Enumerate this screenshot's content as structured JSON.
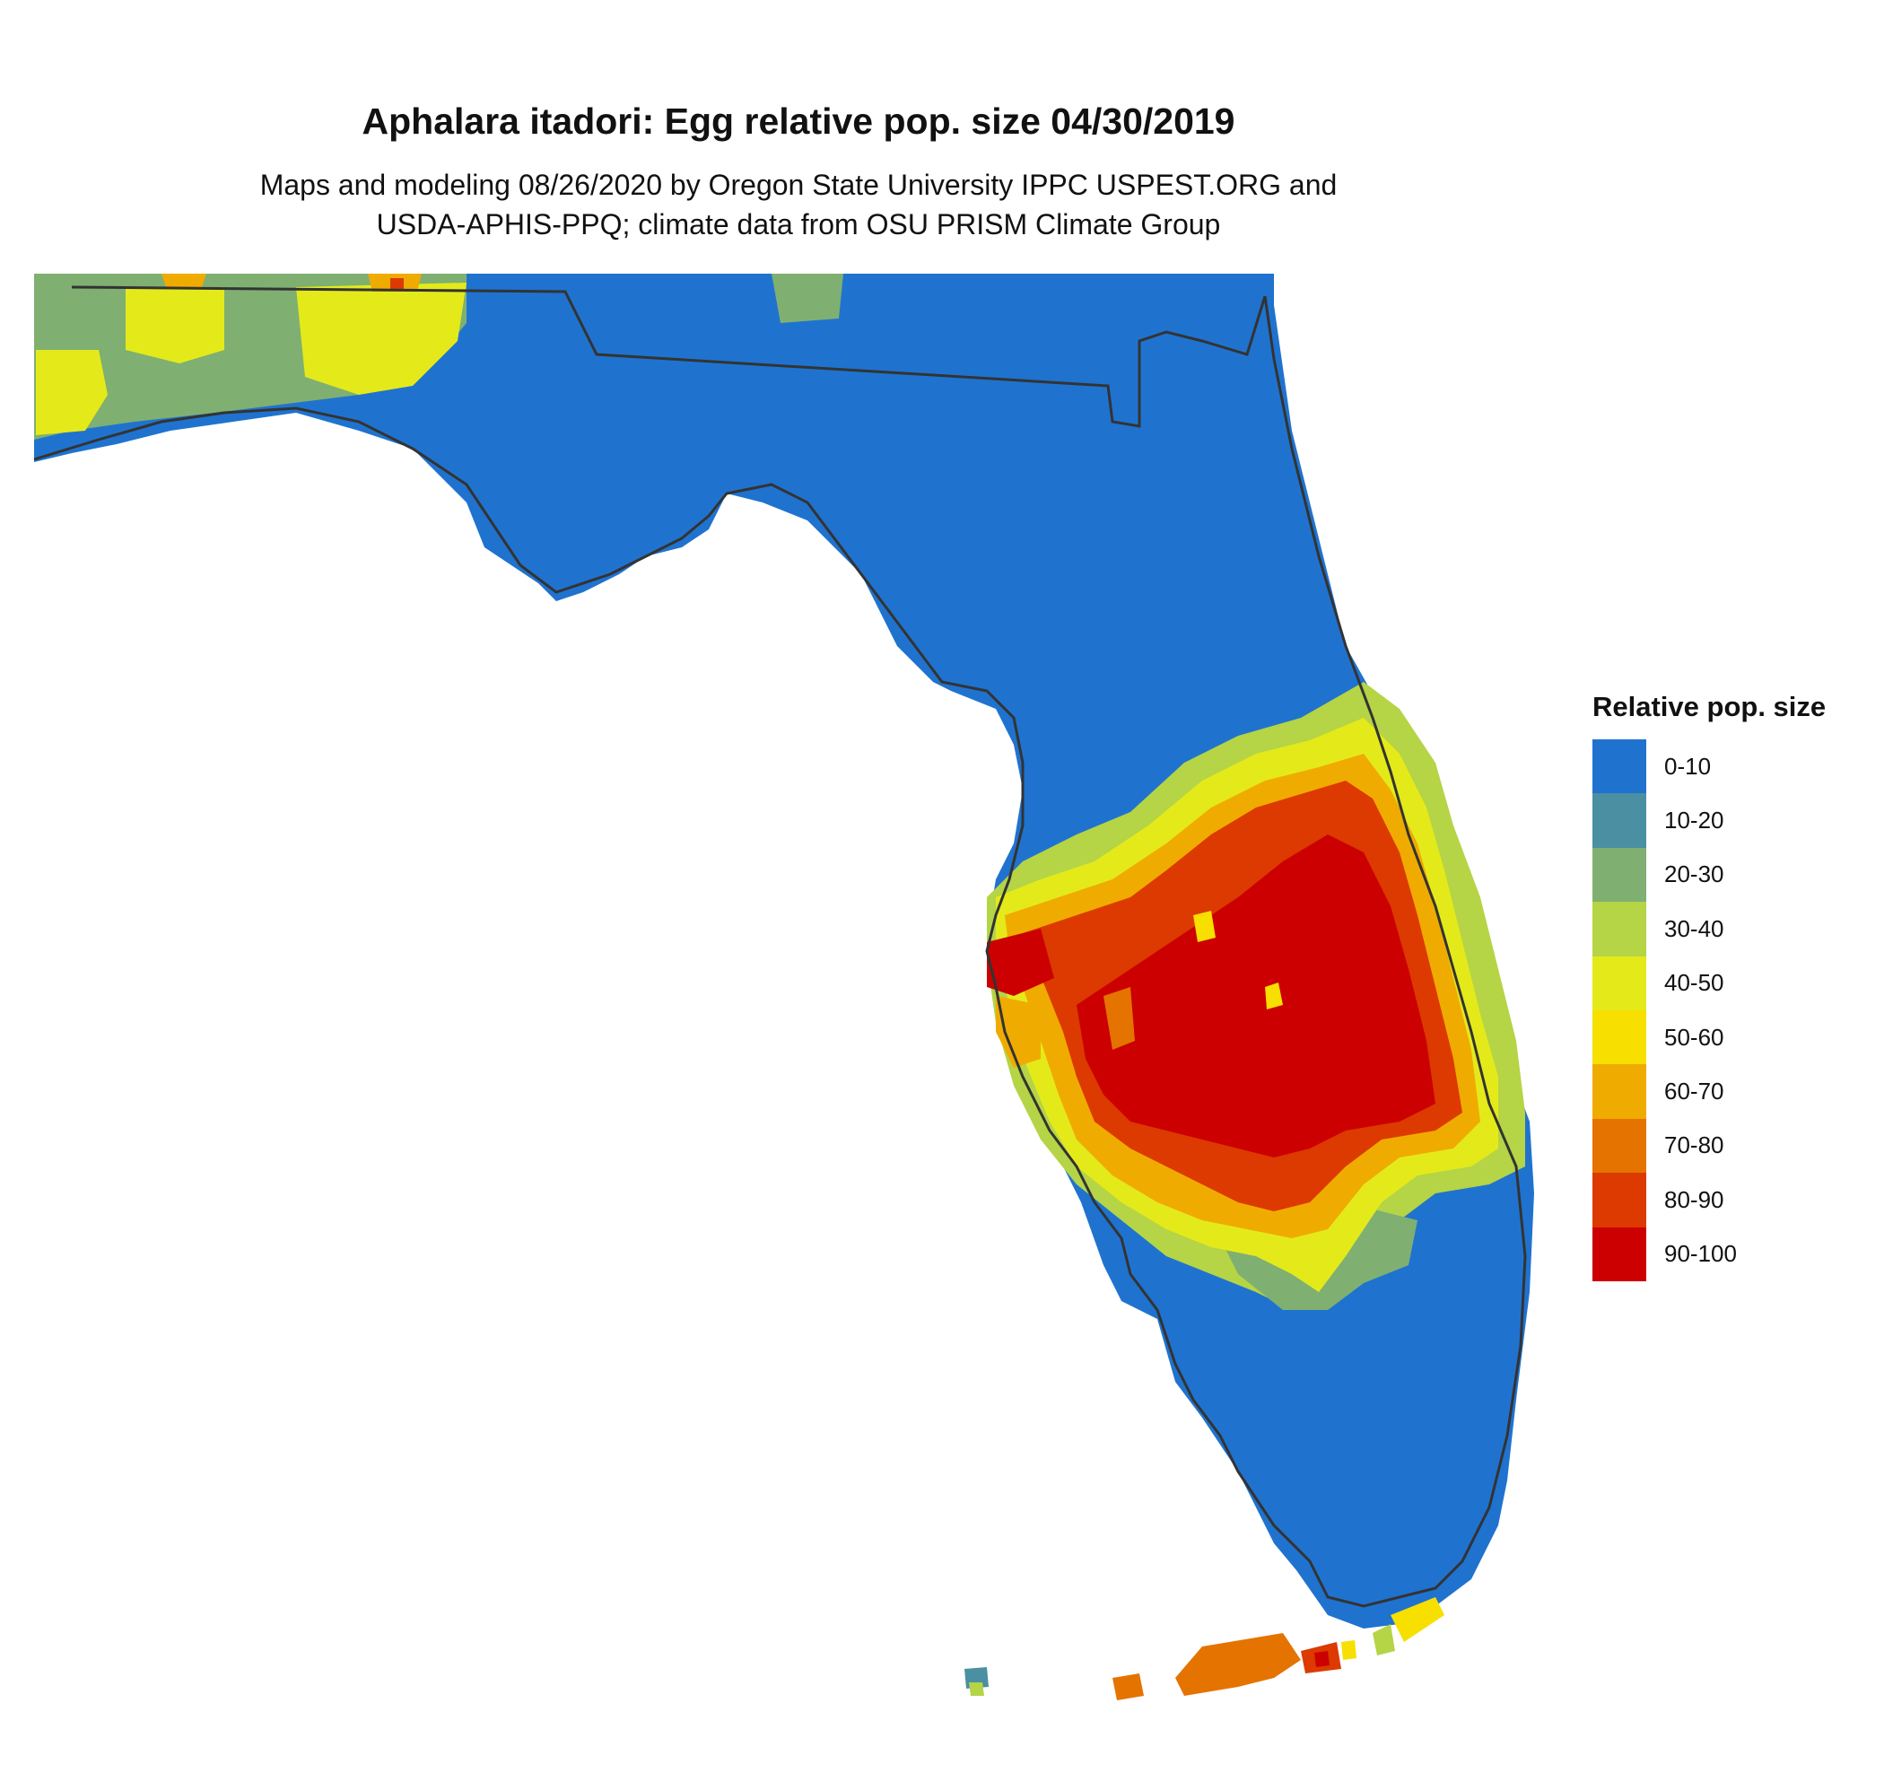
{
  "header": {
    "title": "Aphalara itadori: Egg relative pop. size 04/30/2019",
    "subtitle_line1": "Maps and modeling 08/26/2020 by Oregon State University IPPC USPEST.ORG and",
    "subtitle_line2": "USDA-APHIS-PPQ; climate data from OSU PRISM Climate Group"
  },
  "legend": {
    "title": "Relative pop. size",
    "items": [
      {
        "label": "0-10",
        "color": "#1f73cf"
      },
      {
        "label": "10-20",
        "color": "#4b8fa3"
      },
      {
        "label": "20-30",
        "color": "#7fb071"
      },
      {
        "label": "30-40",
        "color": "#b5d446"
      },
      {
        "label": "40-50",
        "color": "#e4ea1a"
      },
      {
        "label": "50-60",
        "color": "#f7df00"
      },
      {
        "label": "60-70",
        "color": "#f0ab00"
      },
      {
        "label": "70-80",
        "color": "#e57300"
      },
      {
        "label": "80-90",
        "color": "#dc3a00"
      },
      {
        "label": "90-100",
        "color": "#cc0000"
      }
    ]
  },
  "map": {
    "region": "Florida",
    "outline_color": "#333333"
  }
}
